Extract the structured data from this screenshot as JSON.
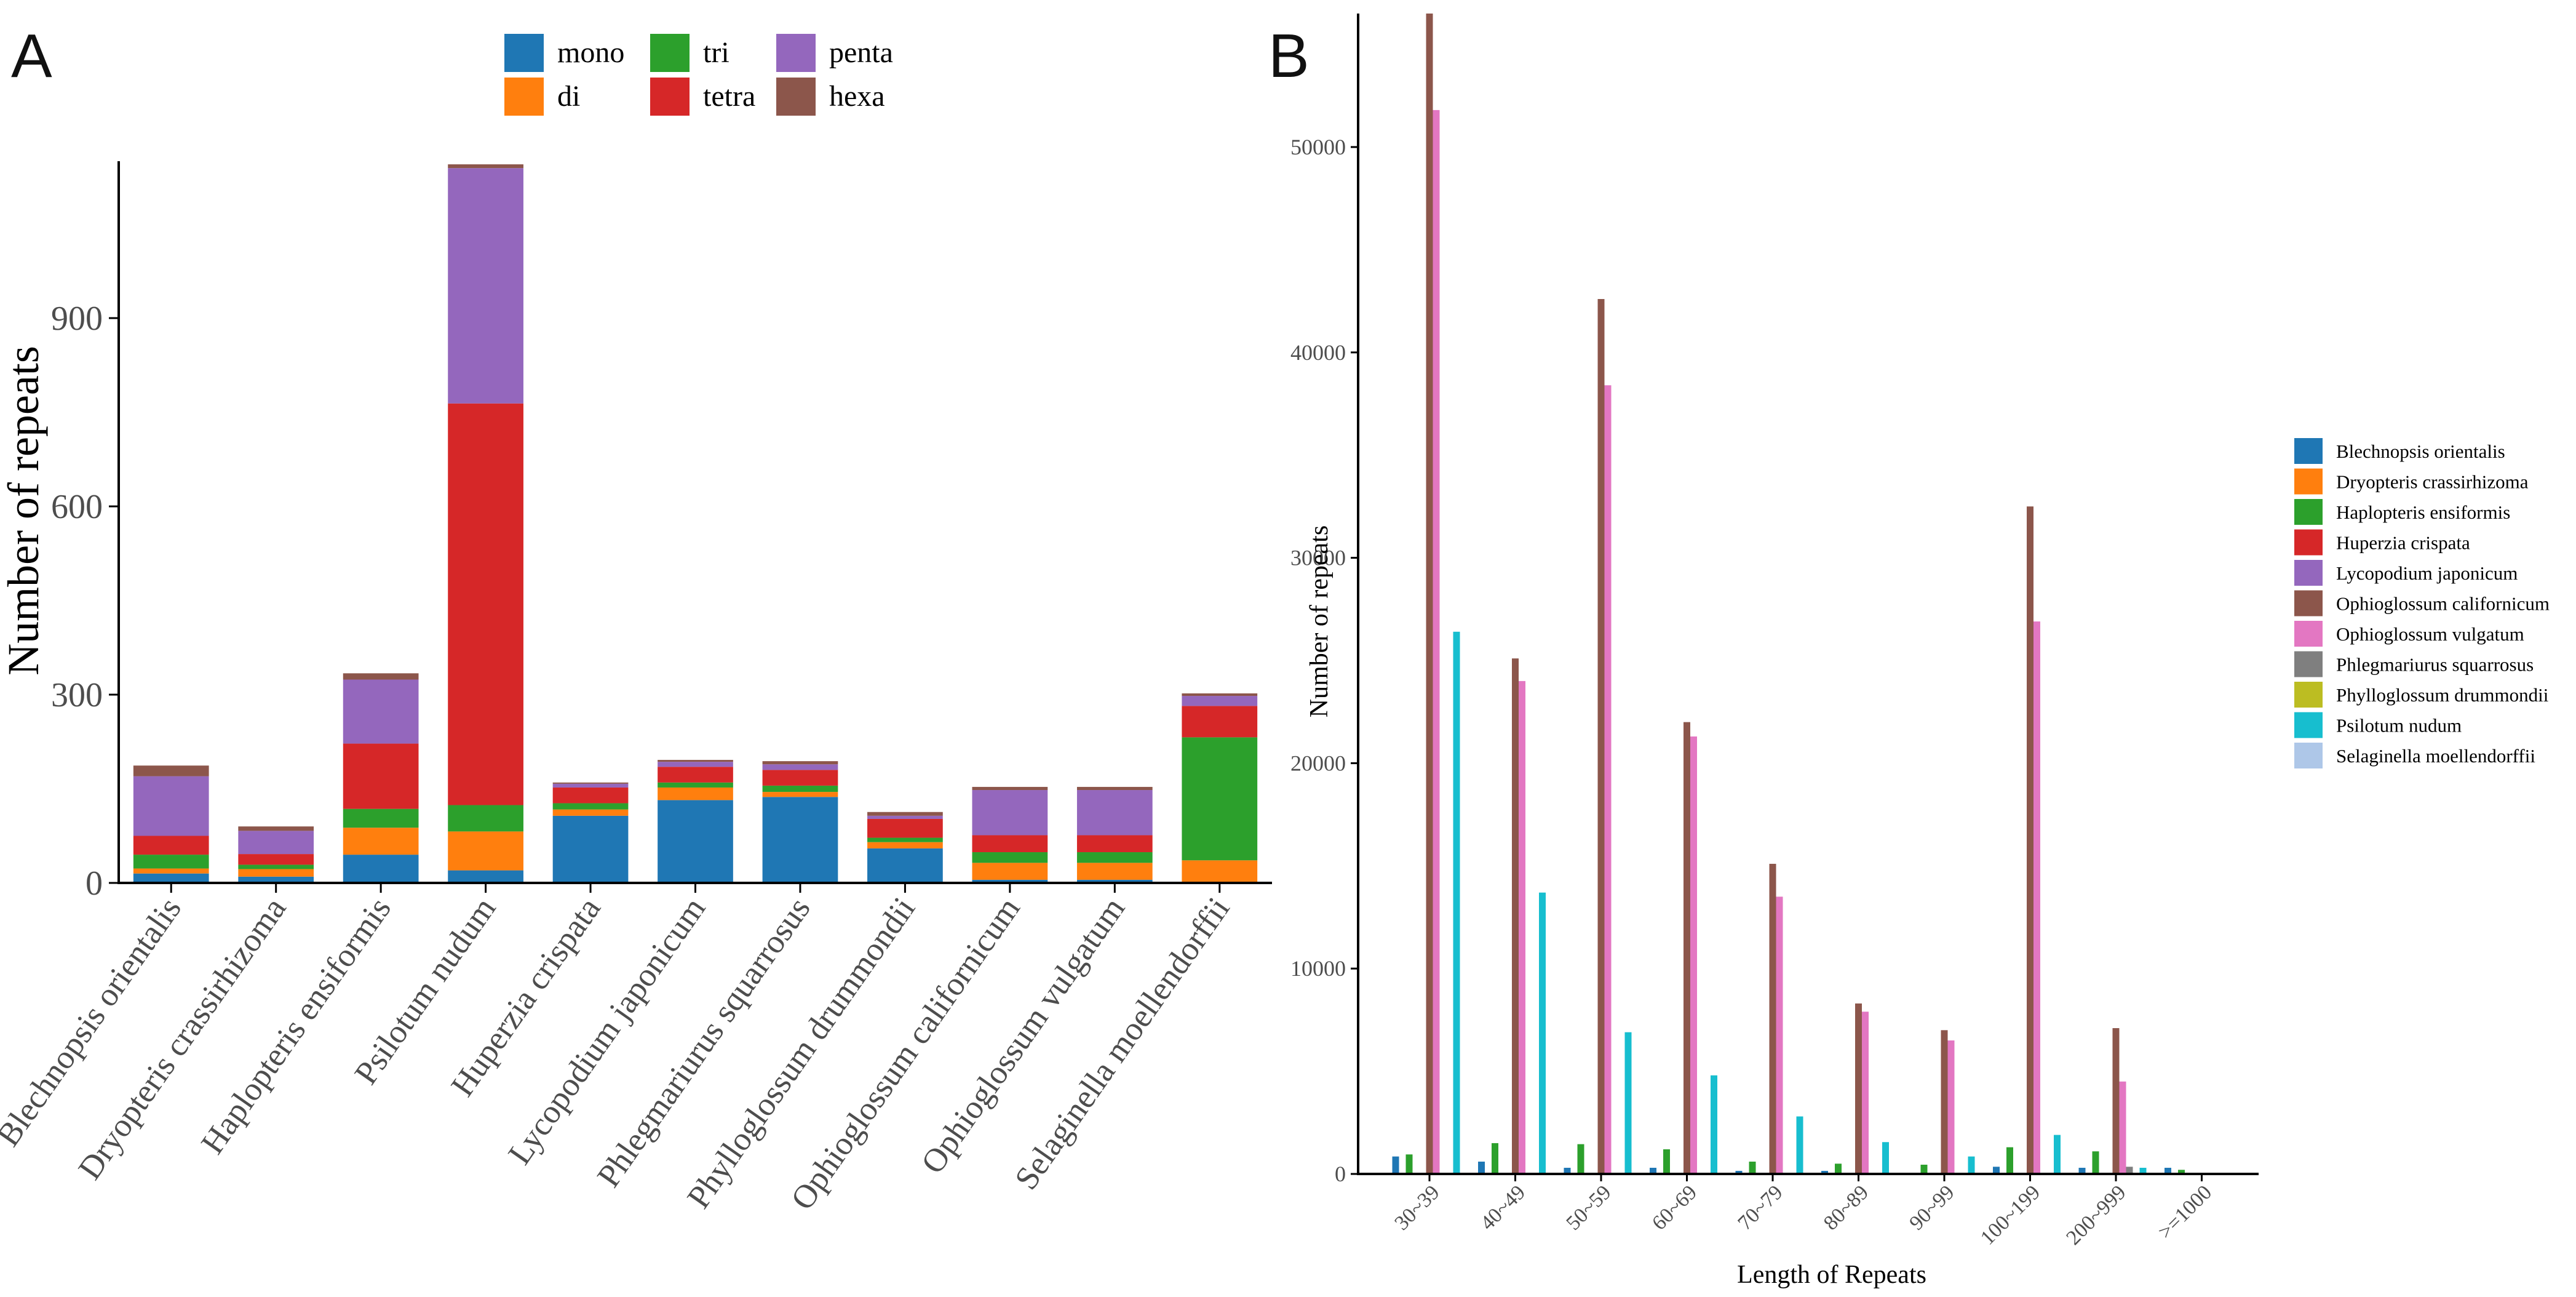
{
  "panels": {
    "a_letter": "A",
    "b_letter": "B"
  },
  "chart_data": [
    {
      "type": "bar",
      "stacked": true,
      "panel": "A",
      "title": "",
      "xlabel": "",
      "ylabel": "Number of repeats",
      "ylim": [
        0,
        1150
      ],
      "yticks": [
        0,
        300,
        600,
        900
      ],
      "legend_position": "top",
      "categories": [
        "Blechnopsis orientalis",
        "Dryopteris crassirhizoma",
        "Haplopteris ensiformis",
        "Psilotum nudum",
        "Huperzia crispata",
        "Lycopodium japonicum",
        "Phlegmariurus squarrosus",
        "Phylloglossum drummondii",
        "Ophioglossum californicum",
        "Ophioglossum vulgatum",
        "Selaginella moellendorffii"
      ],
      "series": [
        {
          "name": "mono",
          "color": "#1f77b4",
          "values": [
            15,
            10,
            45,
            20,
            107,
            132,
            137,
            55,
            5,
            5,
            0
          ]
        },
        {
          "name": "di",
          "color": "#ff7f0e",
          "values": [
            8,
            12,
            43,
            62,
            10,
            20,
            8,
            10,
            27,
            27,
            36
          ]
        },
        {
          "name": "tri",
          "color": "#2ca02c",
          "values": [
            22,
            7,
            30,
            42,
            10,
            8,
            10,
            7,
            17,
            17,
            196
          ]
        },
        {
          "name": "tetra",
          "color": "#d62728",
          "values": [
            30,
            17,
            104,
            640,
            25,
            25,
            25,
            30,
            27,
            27,
            50
          ]
        },
        {
          "name": "penta",
          "color": "#9467bd",
          "values": [
            95,
            37,
            102,
            375,
            6,
            8,
            9,
            5,
            72,
            72,
            16
          ]
        },
        {
          "name": "hexa",
          "color": "#8c564b",
          "values": [
            17,
            7,
            10,
            6,
            2,
            3,
            5,
            6,
            5,
            5,
            4
          ]
        }
      ]
    },
    {
      "type": "bar",
      "grouped": true,
      "panel": "B",
      "title": "",
      "xlabel": "Length of Repeats",
      "ylabel": "Number of repeats",
      "ylim": [
        0,
        56500
      ],
      "yticks": [
        0,
        10000,
        20000,
        30000,
        40000,
        50000
      ],
      "legend_position": "right",
      "categories": [
        "30~39",
        "40~49",
        "50~59",
        "60~69",
        "70~79",
        "80~89",
        "90~99",
        "100~199",
        "200~999",
        ">=1000"
      ],
      "series": [
        {
          "name": "Blechnopsis orientalis",
          "color": "#1f77b4",
          "values": [
            850,
            600,
            300,
            300,
            150,
            150,
            0,
            350,
            300,
            300
          ]
        },
        {
          "name": "Dryopteris crassirhizoma",
          "color": "#ff7f0e",
          "values": [
            0,
            0,
            0,
            0,
            0,
            0,
            0,
            0,
            0,
            0
          ]
        },
        {
          "name": "Haplopteris ensiformis",
          "color": "#2ca02c",
          "values": [
            950,
            1500,
            1450,
            1200,
            600,
            500,
            450,
            1300,
            1100,
            200
          ]
        },
        {
          "name": "Huperzia crispata",
          "color": "#d62728",
          "values": [
            0,
            0,
            0,
            0,
            0,
            0,
            0,
            0,
            0,
            0
          ]
        },
        {
          "name": "Lycopodium japonicum",
          "color": "#9467bd",
          "values": [
            0,
            0,
            0,
            0,
            0,
            0,
            0,
            0,
            0,
            0
          ]
        },
        {
          "name": "Ophioglossum californicum",
          "color": "#8c564b",
          "values": [
            56500,
            25100,
            42600,
            22000,
            15100,
            8300,
            7000,
            32500,
            7100,
            0
          ]
        },
        {
          "name": "Ophioglossum vulgatum",
          "color": "#e377c2",
          "values": [
            51800,
            24000,
            38400,
            21300,
            13500,
            7900,
            6500,
            26900,
            4500,
            0
          ]
        },
        {
          "name": "Phlegmariurus squarrosus",
          "color": "#7f7f7f",
          "values": [
            0,
            0,
            0,
            0,
            0,
            0,
            0,
            0,
            350,
            0
          ]
        },
        {
          "name": "Phylloglossum drummondii",
          "color": "#bcbd22",
          "values": [
            0,
            0,
            0,
            0,
            0,
            0,
            0,
            0,
            0,
            0
          ]
        },
        {
          "name": "Psilotum nudum",
          "color": "#17becf",
          "values": [
            26400,
            13700,
            6900,
            4800,
            2800,
            1550,
            850,
            1900,
            300,
            0
          ]
        },
        {
          "name": "Selaginella moellendorffii",
          "color": "#aec7e8",
          "values": [
            0,
            0,
            0,
            0,
            0,
            0,
            0,
            0,
            0,
            0
          ]
        }
      ]
    }
  ]
}
